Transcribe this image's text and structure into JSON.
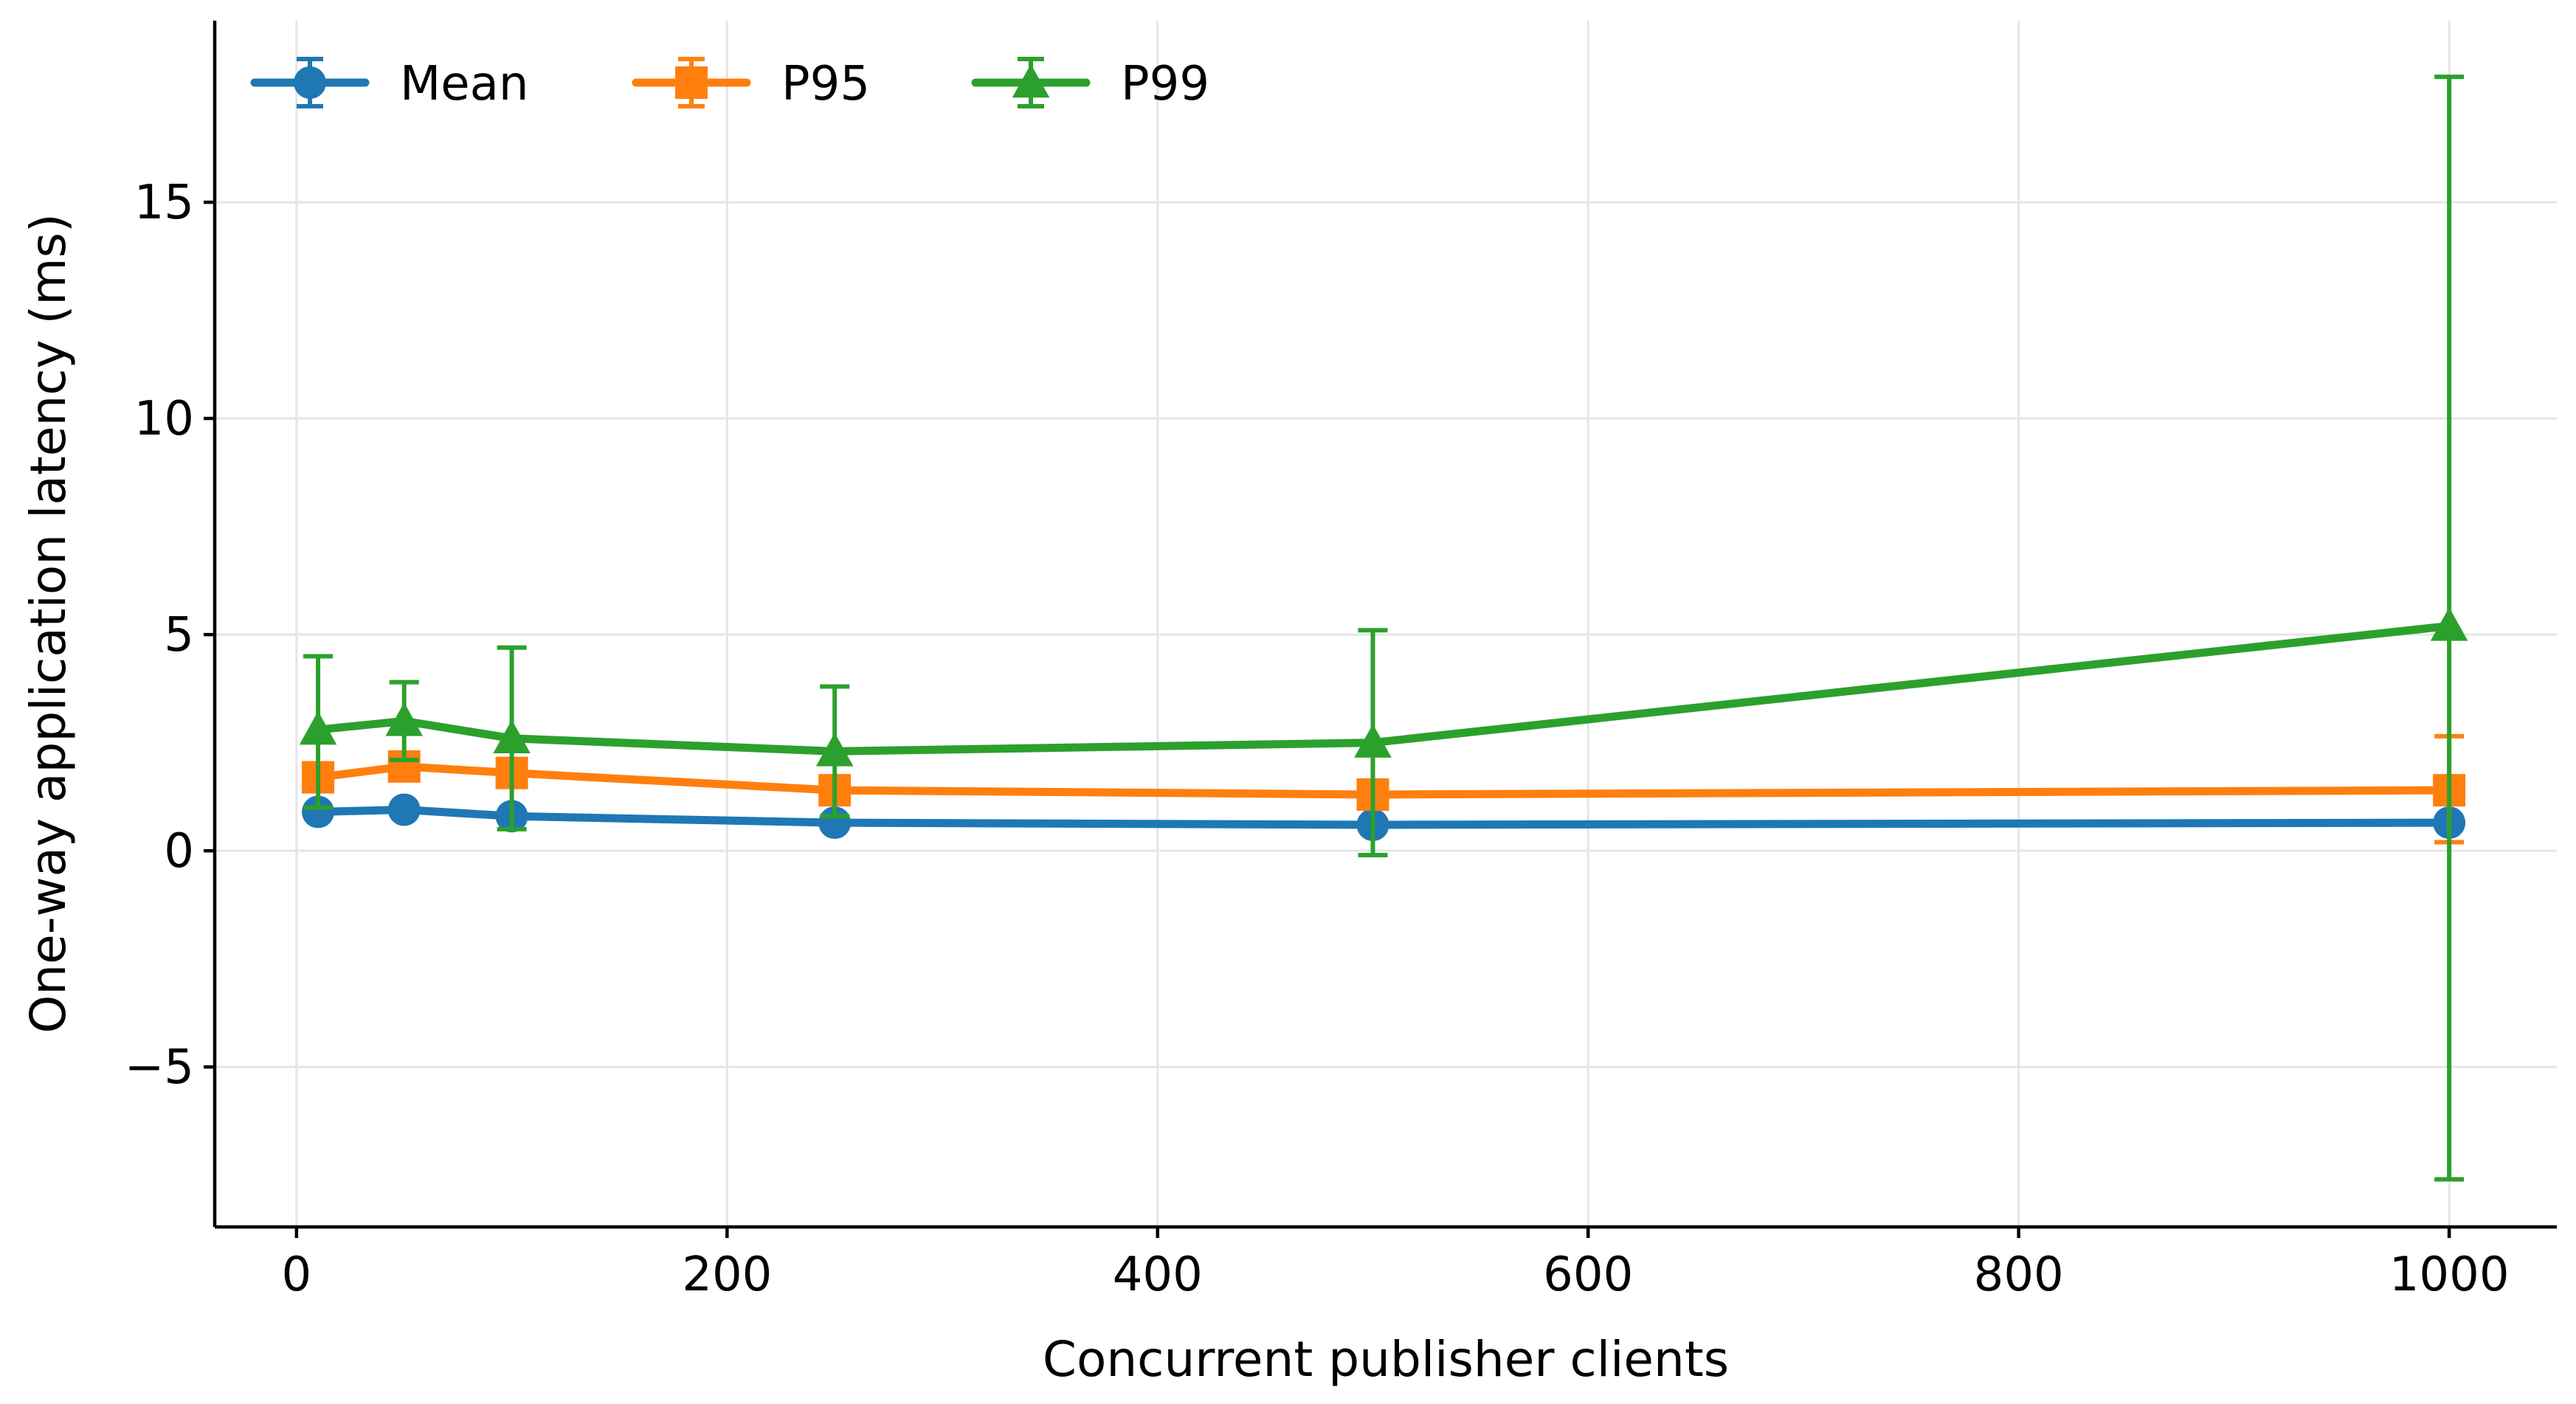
{
  "chart_data": {
    "type": "line",
    "title": "",
    "xlabel": "Concurrent publisher clients",
    "ylabel": "One-way application latency (ms)",
    "x": [
      10,
      50,
      100,
      250,
      500,
      1000
    ],
    "xlim": [
      -38,
      1050
    ],
    "ylim": [
      -8.7,
      19.2
    ],
    "x_ticks": [
      0,
      200,
      400,
      600,
      800,
      1000
    ],
    "x_tick_labels": [
      "0",
      "200",
      "400",
      "600",
      "800",
      "1000"
    ],
    "y_ticks": [
      -5,
      0,
      5,
      10,
      15
    ],
    "y_tick_labels": [
      "−5",
      "0",
      "5",
      "10",
      "15"
    ],
    "grid": true,
    "legend_position": "top-left",
    "series": [
      {
        "name": "Mean",
        "color": "#1f77b4",
        "marker": "circle",
        "values": [
          0.9,
          0.95,
          0.8,
          0.65,
          0.6,
          0.65
        ],
        "err_low": [
          0.9,
          0.95,
          0.8,
          0.65,
          0.6,
          0.65
        ],
        "err_high": [
          0.9,
          0.95,
          0.8,
          0.65,
          0.6,
          0.65
        ]
      },
      {
        "name": "P95",
        "color": "#ff7f0e",
        "marker": "square",
        "values": [
          1.7,
          1.95,
          1.8,
          1.4,
          1.3,
          1.4
        ],
        "err_low": [
          1.7,
          1.95,
          1.8,
          1.4,
          1.3,
          0.2
        ],
        "err_high": [
          1.7,
          1.95,
          1.8,
          1.4,
          1.3,
          2.65
        ]
      },
      {
        "name": "P99",
        "color": "#2ca02c",
        "marker": "triangle",
        "values": [
          2.8,
          3.0,
          2.6,
          2.3,
          2.5,
          5.2
        ],
        "err_low": [
          1.0,
          2.1,
          0.5,
          0.8,
          -0.1,
          -7.6
        ],
        "err_high": [
          4.5,
          3.9,
          4.7,
          3.8,
          5.1,
          17.9
        ]
      }
    ]
  }
}
